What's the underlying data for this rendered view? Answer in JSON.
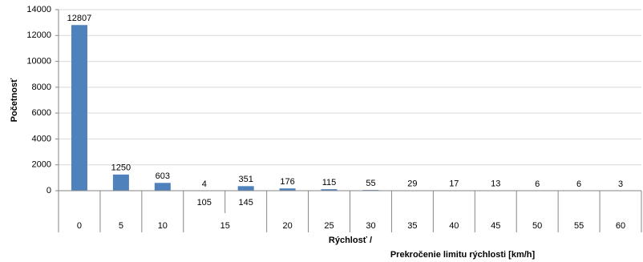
{
  "chart_data": {
    "type": "bar",
    "y_axis_title": "Početnosť",
    "x_axis_title": [
      "Rýchlosť /",
      "Prekročenie limitu rýchlosti [km/h]"
    ],
    "groups": [
      {
        "name": "0",
        "categories": [
          null
        ]
      },
      {
        "name": "5",
        "categories": [
          null
        ]
      },
      {
        "name": "10",
        "categories": [
          null
        ]
      },
      {
        "name": "15",
        "categories": [
          "105",
          "145"
        ]
      },
      {
        "name": "20",
        "categories": [
          null
        ]
      },
      {
        "name": "25",
        "categories": [
          null
        ]
      },
      {
        "name": "30",
        "categories": [
          null
        ]
      },
      {
        "name": "35",
        "categories": [
          null
        ]
      },
      {
        "name": "40",
        "categories": [
          null
        ]
      },
      {
        "name": "45",
        "categories": [
          null
        ]
      },
      {
        "name": "50",
        "categories": [
          null
        ]
      },
      {
        "name": "55",
        "categories": [
          null
        ]
      },
      {
        "name": "60",
        "categories": [
          null
        ]
      }
    ],
    "values": [
      12807,
      1250,
      603,
      4,
      351,
      176,
      115,
      55,
      29,
      17,
      13,
      6,
      6,
      3
    ],
    "color": "#4f81bd",
    "ylim": [
      0,
      14000
    ],
    "yticks": [
      0,
      2000,
      4000,
      6000,
      8000,
      10000,
      12000,
      14000
    ],
    "grid": true
  }
}
